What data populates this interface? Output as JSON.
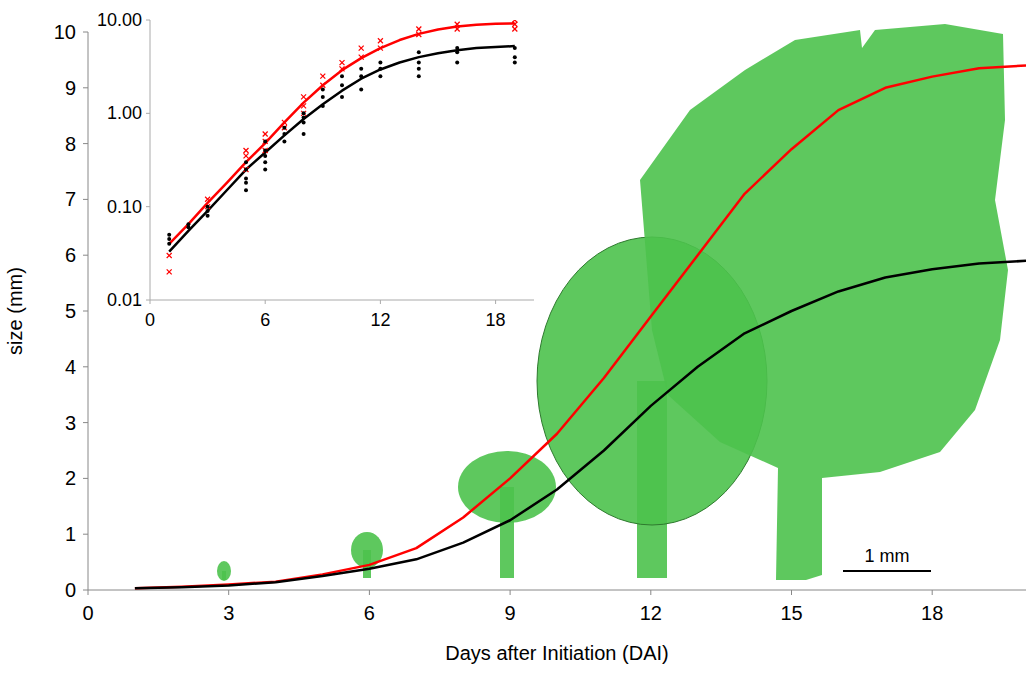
{
  "chart_data": [
    {
      "type": "line",
      "xlabel": "Days after Initiation (DAI)",
      "ylabel": "size (mm)",
      "x": [
        1,
        2,
        3,
        4,
        5,
        6,
        7,
        8,
        9,
        10,
        11,
        12,
        13,
        14,
        15,
        16,
        17,
        18,
        19,
        20
      ],
      "series": [
        {
          "color": "#ff0000",
          "values": [
            0.03,
            0.06,
            0.1,
            0.15,
            0.28,
            0.45,
            0.75,
            1.3,
            2.0,
            2.8,
            3.8,
            4.9,
            6.0,
            7.1,
            7.9,
            8.6,
            9.0,
            9.2,
            9.35,
            9.4
          ]
        },
        {
          "color": "#000000",
          "values": [
            0.03,
            0.05,
            0.08,
            0.14,
            0.25,
            0.38,
            0.55,
            0.85,
            1.25,
            1.8,
            2.5,
            3.3,
            4.0,
            4.6,
            5.0,
            5.35,
            5.6,
            5.75,
            5.85,
            5.9
          ]
        }
      ],
      "xlim": [
        0,
        20
      ],
      "ylim": [
        0,
        10
      ],
      "xticks": [
        0,
        3,
        6,
        9,
        12,
        15,
        18
      ],
      "yticks": [
        0,
        1,
        2,
        3,
        4,
        5,
        6,
        7,
        8,
        9,
        10
      ],
      "annotations": [
        "1 mm"
      ]
    },
    {
      "type": "line",
      "log": "y",
      "x": [
        1,
        2,
        3,
        4,
        5,
        6,
        7,
        8,
        9,
        10,
        11,
        12,
        13,
        14,
        15,
        16,
        17,
        18,
        19
      ],
      "series": [
        {
          "type": "line",
          "color": "#ff0000",
          "values": [
            0.04,
            0.065,
            0.11,
            0.18,
            0.3,
            0.48,
            0.8,
            1.3,
            2.0,
            2.9,
            3.9,
            5.0,
            6.1,
            7.1,
            7.9,
            8.5,
            8.9,
            9.1,
            9.2
          ]
        },
        {
          "type": "line",
          "color": "#000000",
          "values": [
            0.033,
            0.055,
            0.09,
            0.15,
            0.25,
            0.38,
            0.58,
            0.87,
            1.25,
            1.75,
            2.35,
            2.95,
            3.5,
            4.0,
            4.4,
            4.75,
            5.0,
            5.15,
            5.25
          ]
        },
        {
          "type": "scatter",
          "color": "#ff0000",
          "marker": "x",
          "x": [
            1,
            1,
            3,
            3,
            5,
            5,
            5,
            6,
            6,
            6,
            7,
            7,
            8,
            8,
            8,
            9,
            9,
            10,
            10,
            11,
            11,
            12,
            12,
            14,
            14,
            16,
            16,
            19,
            19,
            19
          ],
          "values": [
            0.02,
            0.03,
            0.1,
            0.12,
            0.25,
            0.35,
            0.4,
            0.4,
            0.5,
            0.6,
            0.8,
            0.7,
            1.2,
            1.5,
            1.0,
            2.0,
            2.5,
            3.0,
            3.5,
            4.0,
            5.0,
            5.0,
            6.0,
            7.0,
            8.0,
            8.0,
            9.0,
            9.0,
            10.0,
            8.0
          ]
        },
        {
          "type": "scatter",
          "color": "#000000",
          "marker": "circle",
          "x": [
            1,
            1,
            1,
            2,
            2,
            3,
            3,
            3,
            5,
            5,
            5,
            5,
            5,
            6,
            6,
            6,
            6,
            6,
            7,
            7,
            7,
            8,
            8,
            8,
            8,
            9,
            9,
            9,
            10,
            10,
            10,
            11,
            11,
            11,
            12,
            12,
            12,
            14,
            14,
            14,
            14,
            16,
            16,
            16,
            19,
            19,
            19
          ],
          "values": [
            0.04,
            0.05,
            0.045,
            0.06,
            0.065,
            0.08,
            0.09,
            0.1,
            0.2,
            0.25,
            0.3,
            0.18,
            0.15,
            0.3,
            0.4,
            0.5,
            0.35,
            0.25,
            0.5,
            0.6,
            0.7,
            0.6,
            0.9,
            1.0,
            0.8,
            1.2,
            1.5,
            1.8,
            1.5,
            2.0,
            2.5,
            1.8,
            2.5,
            3.0,
            2.5,
            3.0,
            3.5,
            2.5,
            3.5,
            4.5,
            3.0,
            3.5,
            4.5,
            5.0,
            3.5,
            4.0,
            5.0
          ]
        }
      ],
      "xlim": [
        0,
        20
      ],
      "ylim": [
        0.01,
        10
      ],
      "xticks": [
        0,
        6,
        12,
        18
      ],
      "yticks": [
        0.01,
        {
          "value": 0.1,
          "label": "0.10"
        },
        {
          "value": 1,
          "label": "1.00"
        },
        {
          "value": 10,
          "label": "10.00"
        }
      ]
    }
  ]
}
